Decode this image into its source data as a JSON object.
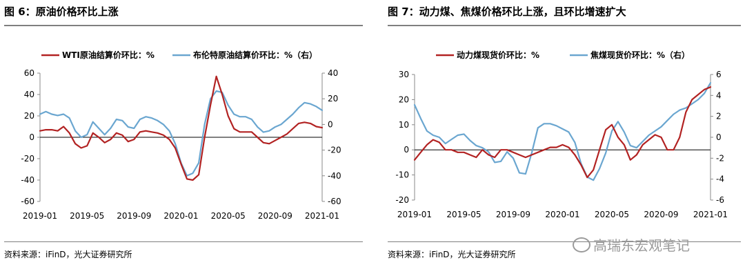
{
  "left": {
    "title": "图 6：原油价格环比上涨",
    "source": "资料来源：iFinD，光大证券研究所",
    "chart_data": {
      "type": "line",
      "categories": [
        "2019-01",
        "2019-05",
        "2019-09",
        "2020-01",
        "2020-05",
        "2020-09",
        "2021-01"
      ],
      "y_left": {
        "min": -60,
        "max": 60,
        "ticks": [
          -60,
          -40,
          -20,
          0,
          20,
          40,
          60
        ]
      },
      "y_right": {
        "min": -60,
        "max": 40,
        "ticks": [
          -60,
          -40,
          -20,
          0,
          20,
          40
        ],
        "label_note": ""
      },
      "series": [
        {
          "name": "WTI原油结算价环比：%",
          "axis": "left",
          "color": "#b22222",
          "x": [
            0,
            0.5,
            1,
            1.5,
            2,
            2.5,
            3,
            3.5,
            4,
            4.5,
            5,
            5.5,
            6,
            6.5,
            7,
            7.5,
            8,
            8.5,
            9,
            9.5,
            10,
            10.5,
            11,
            11.5,
            12,
            12.5,
            13,
            13.5,
            14,
            14.5,
            15,
            15.5,
            16,
            16.5,
            17,
            17.5,
            18,
            18.5,
            19,
            19.5,
            20,
            20.5,
            21,
            21.5,
            22,
            22.5,
            23,
            23.5,
            24
          ],
          "y": [
            6,
            7,
            7,
            6,
            10,
            4,
            -6,
            -10,
            -8,
            4,
            0,
            -5,
            -2,
            4,
            2,
            -4,
            -2,
            5,
            6,
            5,
            4,
            2,
            -2,
            -10,
            -25,
            -39,
            -40,
            -35,
            0,
            30,
            57,
            40,
            20,
            8,
            5,
            5,
            5,
            0,
            -5,
            -6,
            -3,
            0,
            3,
            8,
            13,
            14,
            13,
            10,
            9
          ]
        },
        {
          "name": "布伦特原油结算价环比：%（右）",
          "axis": "right",
          "color": "#6aa6d0",
          "x": [
            0,
            0.5,
            1,
            1.5,
            2,
            2.5,
            3,
            3.5,
            4,
            4.5,
            5,
            5.5,
            6,
            6.5,
            7,
            7.5,
            8,
            8.5,
            9,
            9.5,
            10,
            10.5,
            11,
            11.5,
            12,
            12.5,
            13,
            13.5,
            14,
            14.5,
            15,
            15.5,
            16,
            16.5,
            17,
            17.5,
            18,
            18.5,
            19,
            19.5,
            20,
            20.5,
            21,
            21.5,
            22,
            22.5,
            23,
            23.5,
            24
          ],
          "y": [
            8,
            10,
            8,
            7,
            8,
            5,
            -5,
            -10,
            -8,
            2,
            -3,
            -8,
            -3,
            4,
            3,
            -2,
            -3,
            4,
            6,
            5,
            3,
            0,
            -5,
            -15,
            -30,
            -40,
            -38,
            -30,
            0,
            20,
            26,
            25,
            15,
            8,
            6,
            6,
            4,
            -2,
            -6,
            -5,
            -2,
            0,
            4,
            8,
            13,
            17,
            16,
            14,
            11
          ]
        }
      ],
      "legend": "top",
      "grid": false
    }
  },
  "right": {
    "title": "图 7：动力煤、焦煤价格环比上涨，且环比增速扩大",
    "source": "资料来源：iFinD，光大证券研究所",
    "chart_data": {
      "type": "line",
      "categories": [
        "2019-01",
        "2019-05",
        "2019-09",
        "2020-01",
        "2020-05",
        "2020-09",
        "2021-01"
      ],
      "y_left": {
        "min": -20,
        "max": 30,
        "ticks": [
          -20,
          -10,
          0,
          10,
          20,
          30
        ]
      },
      "y_right": {
        "min": -6,
        "max": 6,
        "ticks": [
          -6,
          -4,
          -2,
          0,
          2,
          4,
          6
        ]
      },
      "series": [
        {
          "name": "动力煤现货价环比：%",
          "axis": "left",
          "color": "#b22222",
          "x": [
            0,
            0.5,
            1,
            1.5,
            2,
            2.5,
            3,
            3.5,
            4,
            4.5,
            5,
            5.5,
            6,
            6.5,
            7,
            7.5,
            8,
            8.5,
            9,
            9.5,
            10,
            10.5,
            11,
            11.5,
            12,
            12.5,
            13,
            13.5,
            14,
            14.5,
            15,
            15.5,
            16,
            16.5,
            17,
            17.5,
            18,
            18.5,
            19,
            19.5,
            20,
            20.5,
            21,
            21.5,
            22,
            22.5,
            23,
            23.5,
            24
          ],
          "y": [
            -4,
            -1,
            2,
            4,
            3,
            0,
            0,
            -1,
            -1,
            -2,
            -3,
            0,
            -2,
            -3,
            0,
            0,
            -1,
            -2,
            -3,
            -2,
            -1,
            0,
            1,
            1,
            2,
            1,
            -2,
            -6,
            -11,
            -8,
            0,
            8,
            10,
            5,
            2,
            -4,
            -2,
            2,
            4,
            6,
            5,
            0,
            0,
            5,
            15,
            20,
            22,
            24,
            25
          ]
        },
        {
          "name": "焦煤现货价环比：%（右）",
          "axis": "right",
          "color": "#6aa6d0",
          "x": [
            0,
            0.5,
            1,
            1.5,
            2,
            2.5,
            3,
            3.5,
            4,
            4.5,
            5,
            5.5,
            6,
            6.5,
            7,
            7.5,
            8,
            8.5,
            9,
            9.5,
            10,
            10.5,
            11,
            11.5,
            12,
            12.5,
            13,
            13.5,
            14,
            14.5,
            15,
            15.5,
            16,
            16.5,
            17,
            17.5,
            18,
            18.5,
            19,
            19.5,
            20,
            20.5,
            21,
            21.5,
            22,
            22.5,
            23,
            23.5,
            24
          ],
          "y": [
            3.1,
            1.8,
            0.6,
            0.2,
            0,
            -0.6,
            -0.2,
            0.2,
            0.3,
            -0.3,
            -0.8,
            -1,
            -1.4,
            -2.4,
            -2.3,
            -1.4,
            -2,
            -3.4,
            -3.5,
            -1.5,
            0.9,
            1.3,
            1.3,
            1.1,
            0.8,
            0.5,
            -0.5,
            -2.5,
            -3.8,
            -4.1,
            -3,
            -1.5,
            0.6,
            1.5,
            0.5,
            -0.8,
            -1,
            -0.4,
            0.2,
            0.6,
            1,
            1.6,
            2.2,
            2.6,
            2.8,
            3.2,
            3.6,
            4.2,
            5.2
          ]
        }
      ],
      "legend": "top",
      "grid": false
    }
  },
  "watermark": "高瑞东宏观笔记"
}
